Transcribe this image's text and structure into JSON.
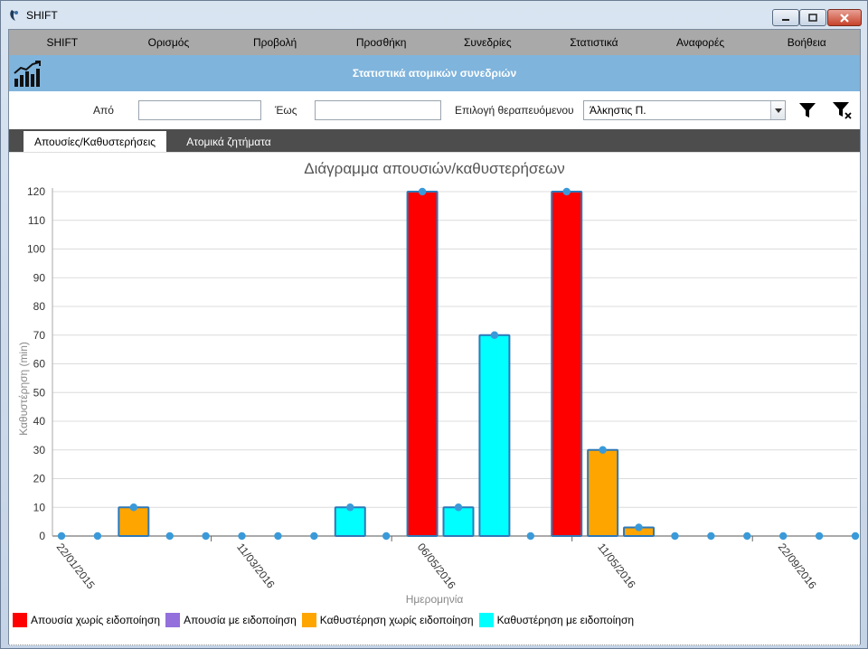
{
  "window": {
    "title": "SHIFT"
  },
  "menu": [
    "SHIFT",
    "Ορισμός",
    "Προβολή",
    "Προσθήκη",
    "Συνεδρίες",
    "Στατιστικά",
    "Αναφορές",
    "Βοήθεια"
  ],
  "header": {
    "title": "Στατιστικά ατομικών συνεδριών"
  },
  "filters": {
    "from_label": "Από",
    "from_value": "",
    "to_label": "Έως",
    "to_value": "",
    "patient_label": "Επιλογή θεραπευόμενου",
    "patient_value": "Άλκηστις Π."
  },
  "tabs": [
    "Απουσίες/Καθυστερήσεις",
    "Ατομικά ζητήματα"
  ],
  "colors": {
    "absent_no_notice": "#ff0000",
    "absent_notice": "#9370db",
    "late_no_notice": "#ffa500",
    "late_notice": "#00ffff",
    "bar_stroke": "#2e78b8",
    "point": "#3a9ad9"
  },
  "chart_data": {
    "type": "bar",
    "title": "Διάγραμμα απουσιών/καθυστερήσεων",
    "xlabel": "Ημερομηνία",
    "ylabel": "Καθυστέρηση (min)",
    "ylim": [
      0,
      120
    ],
    "yticks": [
      0,
      10,
      20,
      30,
      40,
      50,
      60,
      70,
      80,
      90,
      100,
      110,
      120
    ],
    "xtick_labels": [
      "22/01/2015",
      "11/03/2016",
      "06/05/2016",
      "11/05/2016",
      "22/09/2016"
    ],
    "grid": true,
    "legend_position": "bottom-left",
    "series": [
      {
        "name": "Απουσία χωρίς ειδοποίηση",
        "color_key": "absent_no_notice"
      },
      {
        "name": "Απουσία με ειδοποίηση",
        "color_key": "absent_notice"
      },
      {
        "name": "Καθυστέρηση χωρίς ειδοποίηση",
        "color_key": "late_no_notice"
      },
      {
        "name": "Καθυστέρηση με ειδοποίηση",
        "color_key": "late_notice"
      }
    ],
    "points": [
      {
        "value": 0,
        "series": null
      },
      {
        "value": 0,
        "series": null
      },
      {
        "value": 10,
        "series": "Καθυστέρηση χωρίς ειδοποίηση"
      },
      {
        "value": 0,
        "series": null
      },
      {
        "value": 0,
        "series": null
      },
      {
        "value": 0,
        "series": null
      },
      {
        "value": 0,
        "series": null
      },
      {
        "value": 0,
        "series": null
      },
      {
        "value": 10,
        "series": "Καθυστέρηση με ειδοποίηση"
      },
      {
        "value": 0,
        "series": null
      },
      {
        "value": 120,
        "series": "Απουσία χωρίς ειδοποίηση"
      },
      {
        "value": 10,
        "series": "Καθυστέρηση με ειδοποίηση"
      },
      {
        "value": 70,
        "series": "Καθυστέρηση με ειδοποίηση"
      },
      {
        "value": 0,
        "series": null
      },
      {
        "value": 120,
        "series": "Απουσία χωρίς ειδοποίηση"
      },
      {
        "value": 30,
        "series": "Καθυστέρηση χωρίς ειδοποίηση"
      },
      {
        "value": 3,
        "series": "Καθυστέρηση χωρίς ειδοποίηση"
      },
      {
        "value": 0,
        "series": null
      },
      {
        "value": 0,
        "series": null
      },
      {
        "value": 0,
        "series": null
      },
      {
        "value": 0,
        "series": null
      },
      {
        "value": 0,
        "series": null
      },
      {
        "value": 0,
        "series": null
      }
    ]
  }
}
